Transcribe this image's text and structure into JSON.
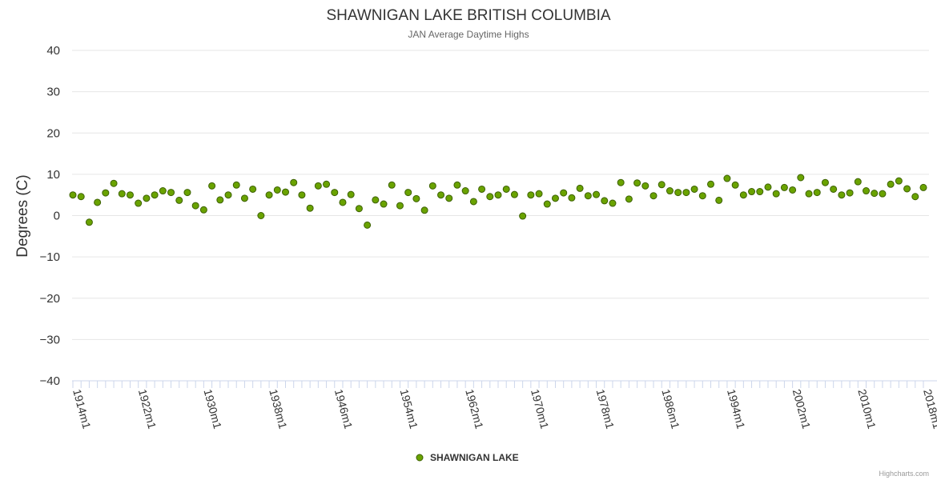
{
  "chart_data": {
    "type": "scatter",
    "title": "SHAWNIGAN LAKE BRITISH COLUMBIA",
    "subtitle": "JAN Average Daytime Highs",
    "ylabel": "Degrees (C)",
    "xlabel": "",
    "ylim": [
      -40,
      40
    ],
    "yticks": [
      40,
      30,
      20,
      10,
      0,
      -10,
      -20,
      -30,
      -40
    ],
    "x_start_year": 1914,
    "x_end_year": 2018,
    "x_tick_labels": [
      "1914m1",
      "1922m1",
      "1930m1",
      "1938m1",
      "1946m1",
      "1954m1",
      "1962m1",
      "1970m1",
      "1978m1",
      "1986m1",
      "1994m1",
      "2002m1",
      "2010m1",
      "2018m1"
    ],
    "series": [
      {
        "name": "SHAWNIGAN LAKE",
        "color": "#6aa300",
        "stroke": "#3c6000",
        "x": [
          1914,
          1915,
          1916,
          1917,
          1918,
          1919,
          1920,
          1921,
          1922,
          1923,
          1924,
          1925,
          1926,
          1927,
          1928,
          1929,
          1930,
          1931,
          1932,
          1933,
          1934,
          1935,
          1936,
          1937,
          1938,
          1939,
          1940,
          1941,
          1942,
          1943,
          1944,
          1945,
          1946,
          1947,
          1948,
          1949,
          1950,
          1951,
          1952,
          1953,
          1954,
          1955,
          1956,
          1957,
          1958,
          1959,
          1960,
          1961,
          1962,
          1963,
          1964,
          1965,
          1966,
          1967,
          1968,
          1969,
          1970,
          1971,
          1972,
          1973,
          1974,
          1975,
          1976,
          1977,
          1978,
          1979,
          1980,
          1981,
          1982,
          1983,
          1984,
          1985,
          1986,
          1987,
          1988,
          1989,
          1990,
          1991,
          1992,
          1993,
          1994,
          1995,
          1996,
          1997,
          1998,
          1999,
          2000,
          2001,
          2002,
          2003,
          2004,
          2005,
          2006,
          2007,
          2008,
          2009,
          2010,
          2011,
          2012,
          2013,
          2014,
          2015,
          2016,
          2017,
          2018
        ],
        "values": [
          5.0,
          4.6,
          -1.6,
          3.2,
          5.5,
          7.8,
          5.3,
          5.0,
          3.0,
          4.2,
          5.0,
          6.0,
          5.6,
          3.7,
          5.6,
          2.4,
          1.4,
          7.2,
          3.8,
          5.0,
          7.4,
          4.2,
          6.4,
          0.0,
          5.0,
          6.2,
          5.7,
          8.0,
          5.0,
          1.8,
          7.2,
          7.6,
          5.6,
          3.2,
          5.1,
          1.7,
          -2.3,
          3.8,
          2.8,
          7.4,
          2.4,
          5.6,
          4.1,
          1.3,
          7.2,
          5.0,
          4.2,
          7.4,
          6.0,
          3.4,
          6.4,
          4.6,
          5.0,
          6.4,
          5.1,
          -0.1,
          5.0,
          5.3,
          2.8,
          4.2,
          5.5,
          4.3,
          6.6,
          4.8,
          5.1,
          3.6,
          3.0,
          8.0,
          4.0,
          7.9,
          7.2,
          4.8,
          7.5,
          6.0,
          5.6,
          5.6,
          6.4,
          4.8,
          7.6,
          3.7,
          9.0,
          7.4,
          5.0,
          5.8,
          5.8,
          6.9,
          5.3,
          6.8,
          6.2,
          9.2,
          5.3,
          5.6,
          8.0,
          6.4,
          5.0,
          5.5,
          8.2,
          6.0,
          5.4,
          5.3,
          7.6,
          8.4,
          6.5,
          4.6,
          6.8
        ]
      }
    ],
    "legend": {
      "position": "bottom-center",
      "label": "SHAWNIGAN LAKE"
    },
    "grid": true,
    "credits": "Highcharts.com"
  }
}
